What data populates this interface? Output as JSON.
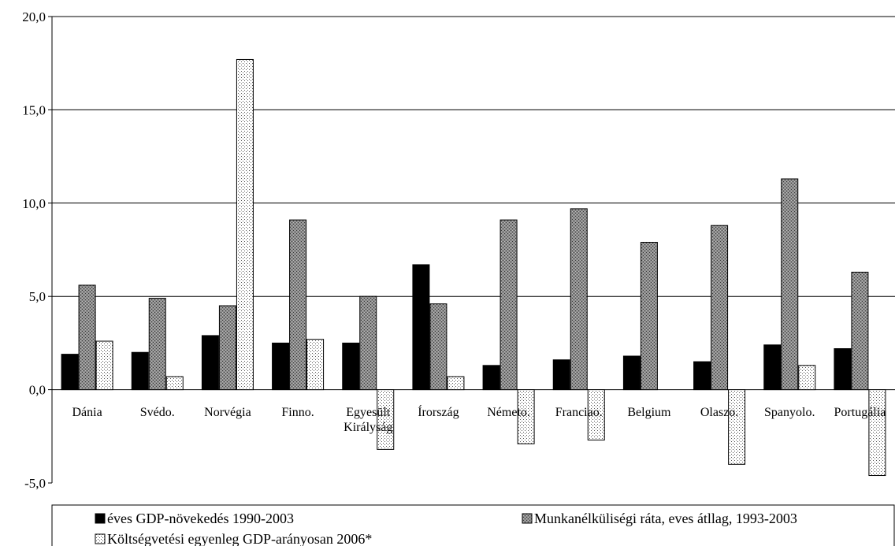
{
  "chart_data": {
    "type": "bar",
    "categories": [
      "Dánia",
      "Svédo.",
      "Norvégia",
      "Finno.",
      "Egyesült Királyság",
      "Írország",
      "Németo.",
      "Franciao.",
      "Belgium",
      "Olaszo.",
      "Spanyolo.",
      "Portugália"
    ],
    "category_lines": [
      [
        "Dánia"
      ],
      [
        "Svédo."
      ],
      [
        "Norvégia"
      ],
      [
        "Finno."
      ],
      [
        "Egyesült",
        "Királyság"
      ],
      [
        "Írország"
      ],
      [
        "Németo."
      ],
      [
        "Franciao."
      ],
      [
        "Belgium"
      ],
      [
        "Olaszo."
      ],
      [
        "Spanyolo."
      ],
      [
        "Portugália"
      ]
    ],
    "series": [
      {
        "name": "éves GDP-növekedés 1990-2003",
        "values": [
          1.9,
          2.0,
          2.9,
          2.5,
          2.5,
          6.7,
          1.3,
          1.6,
          1.8,
          1.5,
          2.4,
          2.2
        ],
        "color": "#000000",
        "pattern": "solid"
      },
      {
        "name": "Munkanélküliségi ráta, eves átllag, 1993-2003",
        "values": [
          5.6,
          4.9,
          4.5,
          9.1,
          5.0,
          4.6,
          9.1,
          9.7,
          7.9,
          8.8,
          11.3,
          6.3
        ],
        "color": "#808080",
        "pattern": "crosshatch"
      },
      {
        "name": "Költségvetési egyenleg GDP-arányosan 2006*",
        "values": [
          2.6,
          0.7,
          17.7,
          2.7,
          -3.2,
          0.7,
          -2.9,
          -2.7,
          null,
          -4.0,
          1.3,
          -4.6
        ],
        "color": "#ffffff",
        "pattern": "dotted"
      }
    ],
    "yticks": [
      "20,0",
      "15,0",
      "10,0",
      "5,0",
      "0,0",
      "-5,0"
    ],
    "ylim": [
      -5,
      20
    ],
    "grid": true,
    "legend_position": "bottom"
  }
}
